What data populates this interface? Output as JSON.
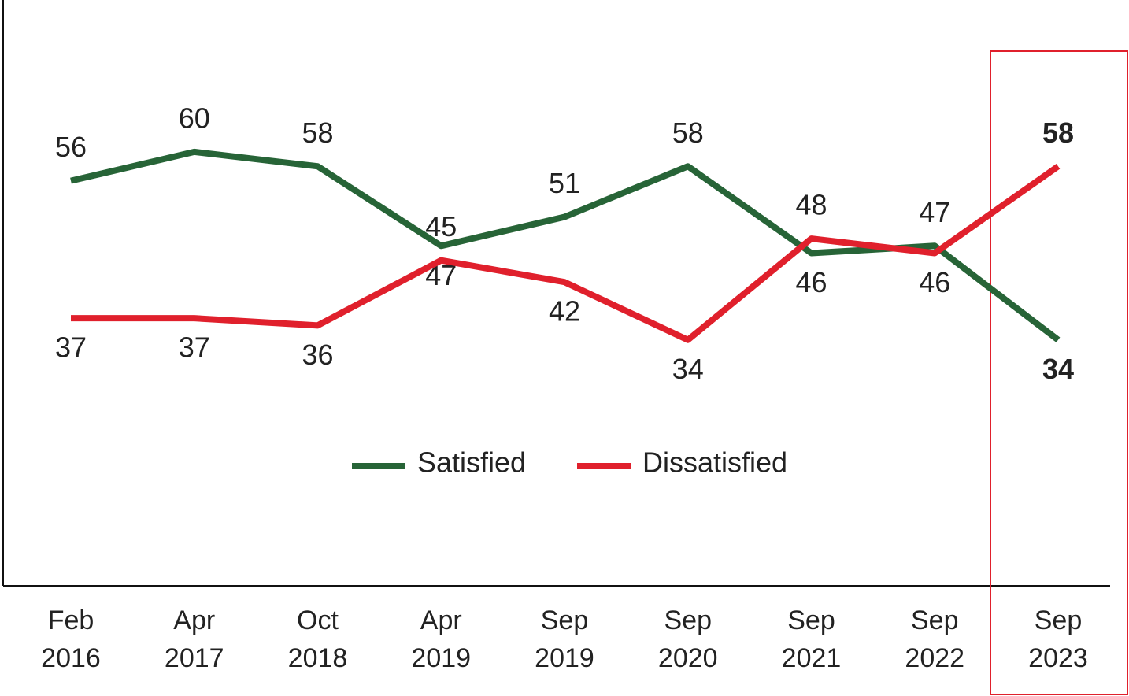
{
  "chart_data": {
    "type": "line",
    "categories": [
      "Feb 2016",
      "Apr 2017",
      "Oct 2018",
      "Apr 2019",
      "Sep 2019",
      "Sep 2020",
      "Sep 2021",
      "Sep 2022",
      "Sep 2023"
    ],
    "series": [
      {
        "name": "Satisfied",
        "color": "#276437",
        "values": [
          56,
          60,
          58,
          47,
          51,
          58,
          46,
          47,
          34
        ]
      },
      {
        "name": "Dissatisfied",
        "color": "#e0202c",
        "values": [
          37,
          37,
          36,
          45,
          42,
          34,
          48,
          46,
          58
        ]
      }
    ],
    "ylim": [
      0,
      81
    ],
    "legend": "center"
  }
}
